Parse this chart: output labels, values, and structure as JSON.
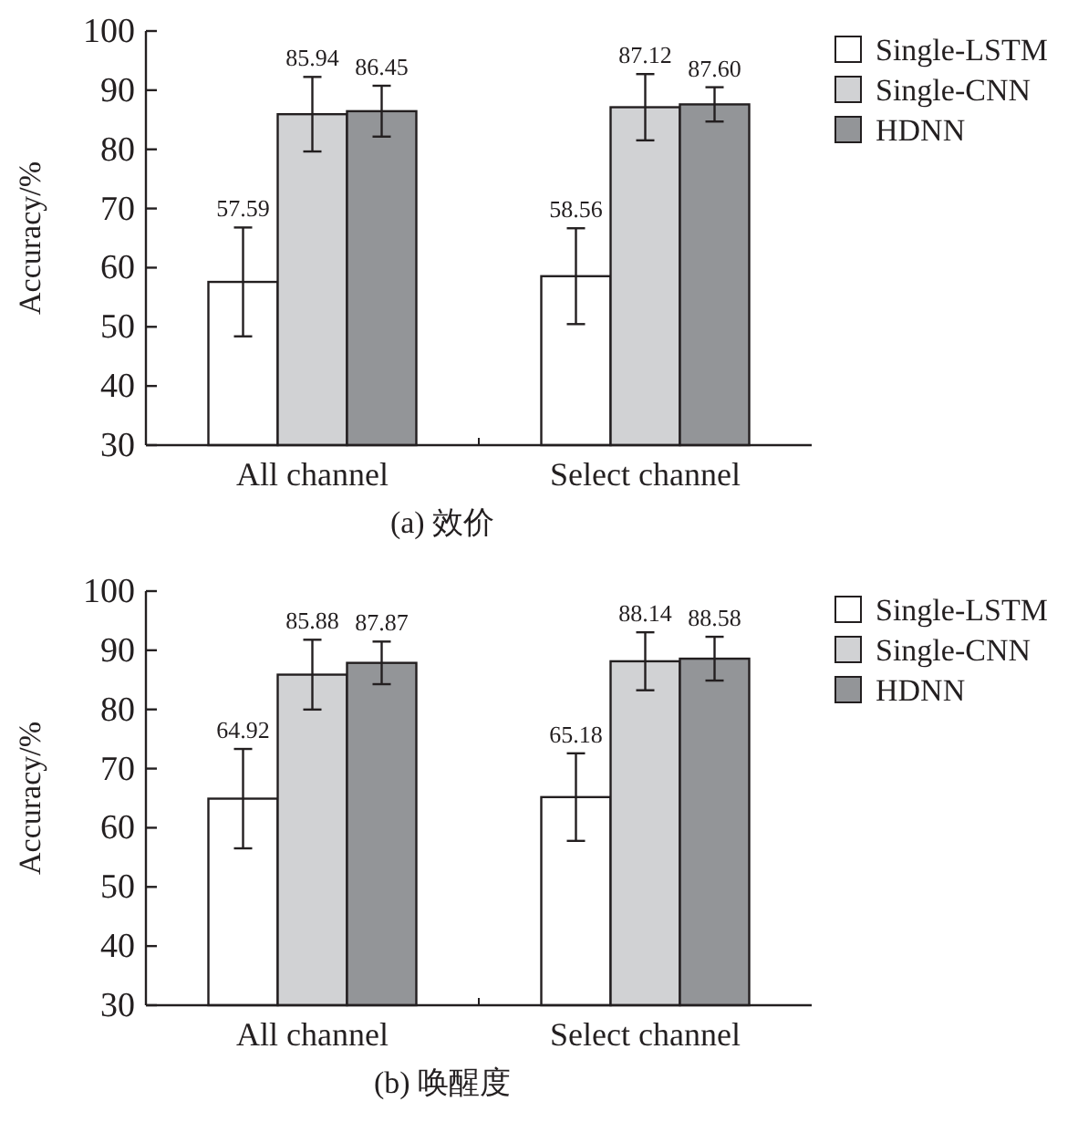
{
  "chart_data": [
    {
      "type": "bar",
      "title": "(a) 效价",
      "ylabel": "Accuracy/%",
      "categories": [
        "All channel",
        "Select channel"
      ],
      "ylim": [
        30,
        100
      ],
      "yticks": [
        30,
        40,
        50,
        60,
        70,
        80,
        90,
        100
      ],
      "legend": "right",
      "series": [
        {
          "name": "Single-LSTM",
          "color": "#ffffff",
          "values": [
            57.59,
            58.56
          ],
          "value_labels": [
            "57.59",
            "58.56"
          ],
          "errors": [
            9.2,
            8.1
          ]
        },
        {
          "name": "Single-CNN",
          "color": "#d1d2d4",
          "values": [
            85.94,
            87.12
          ],
          "value_labels": [
            "85.94",
            "87.12"
          ],
          "errors": [
            6.3,
            5.6
          ]
        },
        {
          "name": "HDNN",
          "color": "#939598",
          "values": [
            86.45,
            87.6
          ],
          "value_labels": [
            "86.45",
            "87.60"
          ],
          "errors": [
            4.3,
            2.9
          ]
        }
      ]
    },
    {
      "type": "bar",
      "title": "(b) 唤醒度",
      "ylabel": "Accuracy/%",
      "categories": [
        "All channel",
        "Select channel"
      ],
      "ylim": [
        30,
        100
      ],
      "yticks": [
        30,
        40,
        50,
        60,
        70,
        80,
        90,
        100
      ],
      "legend": "right",
      "series": [
        {
          "name": "Single-LSTM",
          "color": "#ffffff",
          "values": [
            64.92,
            65.18
          ],
          "value_labels": [
            "64.92",
            "65.18"
          ],
          "errors": [
            8.4,
            7.4
          ]
        },
        {
          "name": "Single-CNN",
          "color": "#d1d2d4",
          "values": [
            85.88,
            88.14
          ],
          "value_labels": [
            "85.88",
            "88.14"
          ],
          "errors": [
            5.9,
            4.9
          ]
        },
        {
          "name": "HDNN",
          "color": "#939598",
          "values": [
            87.87,
            88.58
          ],
          "value_labels": [
            "87.87",
            "88.58"
          ],
          "errors": [
            3.6,
            3.7
          ]
        }
      ]
    }
  ]
}
